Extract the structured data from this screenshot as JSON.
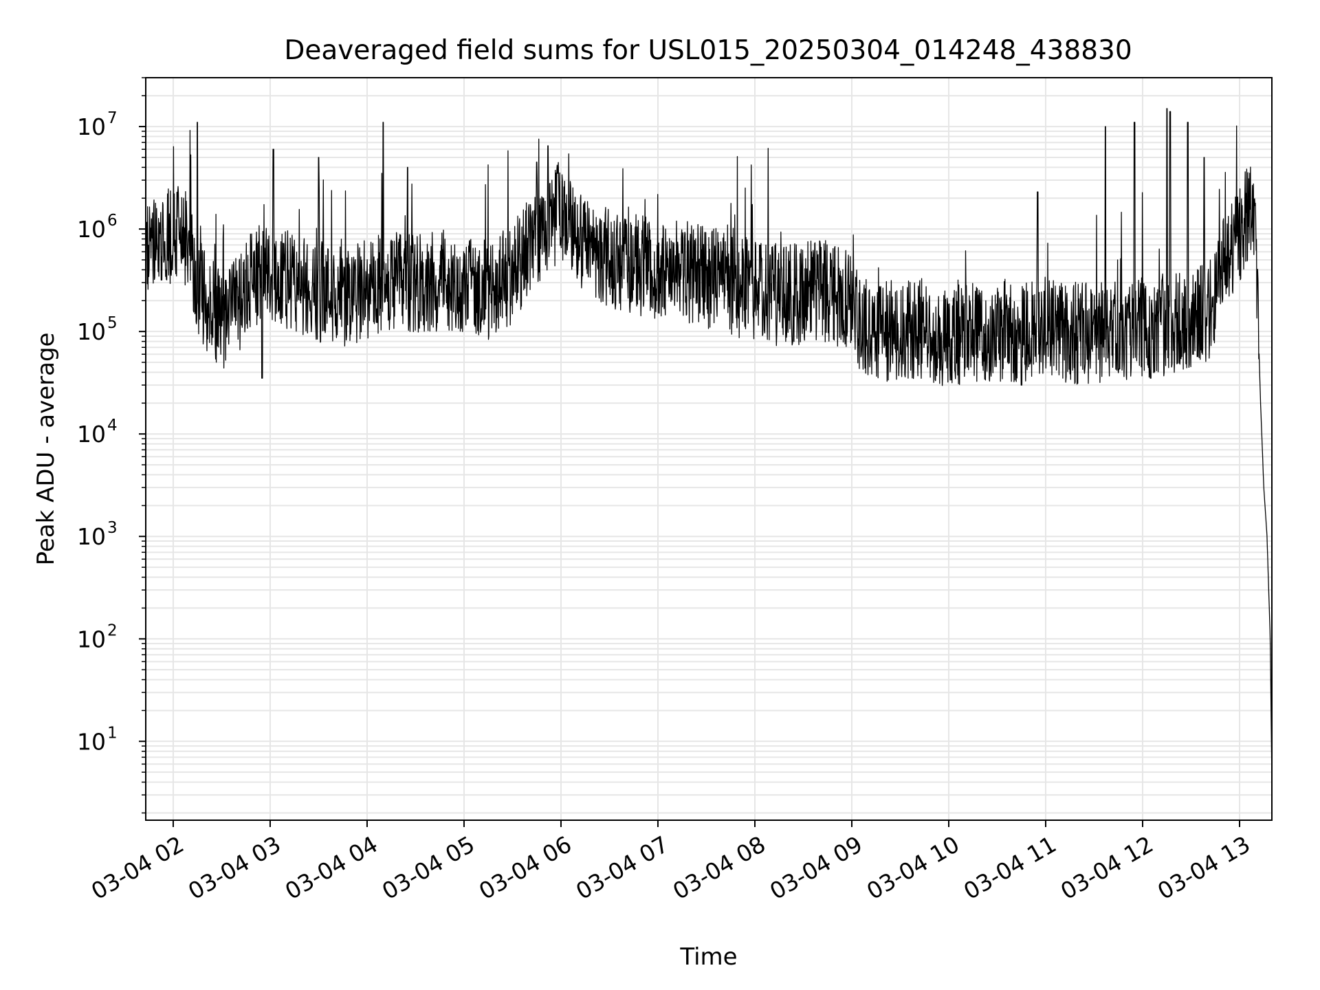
{
  "chart_data": {
    "type": "line",
    "title": "Deaveraged field sums for USL015_20250304_014248_438830",
    "xlabel": "Time",
    "ylabel": "Peak ADU - average",
    "yscale": "log",
    "x_type": "datetime",
    "xlim": [
      "2025-03-04T01:43:00",
      "2025-03-04T13:20:00"
    ],
    "ylim": [
      1.7,
      30000000
    ],
    "grid": true,
    "grid_minor": true,
    "legend": "none",
    "line_color": "#000000",
    "grid_color": "#e6e6e6",
    "x_ticks": [
      {
        "value": "2025-03-04T02:00:00",
        "label": "03-04 02"
      },
      {
        "value": "2025-03-04T03:00:00",
        "label": "03-04 03"
      },
      {
        "value": "2025-03-04T04:00:00",
        "label": "03-04 04"
      },
      {
        "value": "2025-03-04T05:00:00",
        "label": "03-04 05"
      },
      {
        "value": "2025-03-04T06:00:00",
        "label": "03-04 06"
      },
      {
        "value": "2025-03-04T07:00:00",
        "label": "03-04 07"
      },
      {
        "value": "2025-03-04T08:00:00",
        "label": "03-04 08"
      },
      {
        "value": "2025-03-04T09:00:00",
        "label": "03-04 09"
      },
      {
        "value": "2025-03-04T10:00:00",
        "label": "03-04 10"
      },
      {
        "value": "2025-03-04T11:00:00",
        "label": "03-04 11"
      },
      {
        "value": "2025-03-04T12:00:00",
        "label": "03-04 12"
      },
      {
        "value": "2025-03-04T13:00:00",
        "label": "03-04 13"
      }
    ],
    "y_ticks": [
      {
        "value": 10,
        "base": "10",
        "exp": "1"
      },
      {
        "value": 100,
        "base": "10",
        "exp": "2"
      },
      {
        "value": 1000,
        "base": "10",
        "exp": "3"
      },
      {
        "value": 10000,
        "base": "10",
        "exp": "4"
      },
      {
        "value": 100000,
        "base": "10",
        "exp": "5"
      },
      {
        "value": 1000000,
        "base": "10",
        "exp": "6"
      },
      {
        "value": 10000000,
        "base": "10",
        "exp": "7"
      }
    ],
    "series": [
      {
        "x": [
          "2025-03-04T01:43:00",
          "2025-03-04T01:50:00",
          "2025-03-04T01:55:00",
          "2025-03-04T02:00:00",
          "2025-03-04T02:10:00",
          "2025-03-04T02:15:00",
          "2025-03-04T02:20:00",
          "2025-03-04T02:30:00",
          "2025-03-04T02:40:00",
          "2025-03-04T02:50:00",
          "2025-03-04T03:00:00",
          "2025-03-04T03:15:00",
          "2025-03-04T03:30:00",
          "2025-03-04T03:45:00",
          "2025-03-04T04:00:00",
          "2025-03-04T04:15:00",
          "2025-03-04T04:30:00",
          "2025-03-04T04:45:00",
          "2025-03-04T05:00:00",
          "2025-03-04T05:15:00",
          "2025-03-04T05:30:00",
          "2025-03-04T05:45:00",
          "2025-03-04T06:00:00",
          "2025-03-04T06:15:00",
          "2025-03-04T06:30:00",
          "2025-03-04T06:45:00",
          "2025-03-04T07:00:00",
          "2025-03-04T07:20:00",
          "2025-03-04T07:40:00",
          "2025-03-04T08:00:00",
          "2025-03-04T08:20:00",
          "2025-03-04T08:40:00",
          "2025-03-04T09:00:00",
          "2025-03-04T09:05:00",
          "2025-03-04T09:20:00",
          "2025-03-04T09:40:00",
          "2025-03-04T10:00:00",
          "2025-03-04T10:20:00",
          "2025-03-04T10:40:00",
          "2025-03-04T11:00:00",
          "2025-03-04T11:20:00",
          "2025-03-04T11:40:00",
          "2025-03-04T12:00:00",
          "2025-03-04T12:20:00",
          "2025-03-04T12:40:00",
          "2025-03-04T12:50:00",
          "2025-03-04T13:00:00",
          "2025-03-04T13:06:00",
          "2025-03-04T13:10:00",
          "2025-03-04T13:13:00",
          "2025-03-04T13:15:00",
          "2025-03-04T13:17:00",
          "2025-03-04T13:19:00",
          "2025-03-04T13:20:00"
        ],
        "y": [
          600000,
          650000,
          800000,
          900000,
          700000,
          300000,
          200000,
          120000,
          180000,
          350000,
          400000,
          300000,
          250000,
          220000,
          260000,
          300000,
          280000,
          320000,
          300000,
          260000,
          350000,
          900000,
          1500000,
          700000,
          500000,
          450000,
          400000,
          380000,
          300000,
          250000,
          220000,
          260000,
          200000,
          120000,
          100000,
          110000,
          90000,
          95000,
          100000,
          110000,
          95000,
          100000,
          110000,
          120000,
          150000,
          400000,
          800000,
          1700000,
          800000,
          20000,
          3000,
          1000,
          100,
          3.7
        ]
      }
    ],
    "spikes": [
      {
        "x": "2025-03-04T02:15:00",
        "y": 11000000
      },
      {
        "x": "2025-03-04T03:02:00",
        "y": 6000000
      },
      {
        "x": "2025-03-04T03:30:00",
        "y": 5000000
      },
      {
        "x": "2025-03-04T04:10:00",
        "y": 11000000
      },
      {
        "x": "2025-03-04T04:25:00",
        "y": 4000000
      },
      {
        "x": "2025-03-04T05:45:00",
        "y": 4500000
      },
      {
        "x": "2025-03-04T05:52:00",
        "y": 6500000
      },
      {
        "x": "2025-03-04T05:58:00",
        "y": 3500000
      },
      {
        "x": "2025-03-04T10:55:00",
        "y": 2300000
      },
      {
        "x": "2025-03-04T11:37:00",
        "y": 10000000
      },
      {
        "x": "2025-03-04T11:55:00",
        "y": 11000000
      },
      {
        "x": "2025-03-04T12:15:00",
        "y": 15000000
      },
      {
        "x": "2025-03-04T12:17:00",
        "y": 14000000
      },
      {
        "x": "2025-03-04T12:28:00",
        "y": 11000000
      },
      {
        "x": "2025-03-04T12:38:00",
        "y": 5000000
      },
      {
        "x": "2025-03-04T02:55:00",
        "y": 35000
      },
      {
        "x": "2025-03-04T10:45:00",
        "y": 30000
      },
      {
        "x": "2025-03-04T12:05:00",
        "y": 35000
      }
    ]
  }
}
